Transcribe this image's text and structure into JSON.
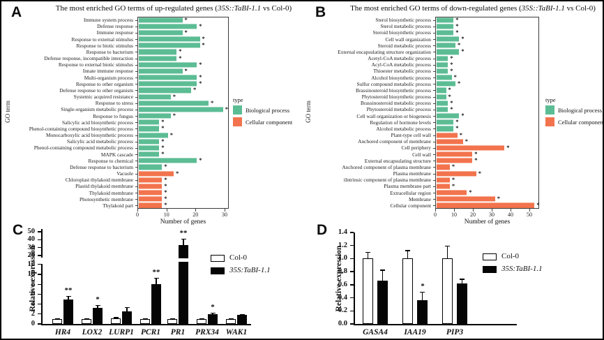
{
  "panels": {
    "a": {
      "letter": "A",
      "title_prefix": "The most enriched GO terms of up-regulated genes (",
      "title_italic": "35S::TaBI-1.1",
      "title_suffix": " vs Col-0)"
    },
    "b": {
      "letter": "B",
      "title_prefix": "The most enriched GO terms of down-regulated genes (",
      "title_italic": "35S::TaBI-1.1",
      "title_suffix": " vs Col-0)"
    },
    "c": {
      "letter": "C"
    },
    "d": {
      "letter": "D"
    }
  },
  "chart_data": [
    {
      "id": "A",
      "type": "bar",
      "orientation": "horizontal",
      "title": "The most enriched GO terms of up-regulated genes (35S::TaBI-1.1 vs Col-0)",
      "xlabel": "Number of genes",
      "ylabel": "GO term",
      "xlim": [
        0,
        30
      ],
      "xticks": [
        0,
        10,
        20,
        30
      ],
      "legend_title": "type",
      "legend": [
        {
          "label": "Biological process",
          "color": "#5CBC94"
        },
        {
          "label": "Cellular component",
          "color": "#F2734D"
        }
      ],
      "colors": {
        "bp": "#5CBC94",
        "cc": "#F2734D"
      },
      "rows": [
        {
          "label": "Immune system process",
          "value": 15,
          "type": "bp",
          "sig": "*"
        },
        {
          "label": "Defense response",
          "value": 20,
          "type": "bp",
          "sig": "*"
        },
        {
          "label": "Immune response",
          "value": 15,
          "type": "bp",
          "sig": "*"
        },
        {
          "label": "Response to external stimulus",
          "value": 21,
          "type": "bp",
          "sig": "*"
        },
        {
          "label": "Response to biotic stimulus",
          "value": 21,
          "type": "bp",
          "sig": "*"
        },
        {
          "label": "Response to bacterium",
          "value": 13,
          "type": "bp",
          "sig": "*"
        },
        {
          "label": "Defense response, incompatible interaction",
          "value": 13,
          "type": "bp",
          "sig": "*"
        },
        {
          "label": "Response to external biotic stimulus",
          "value": 20,
          "type": "bp",
          "sig": "*"
        },
        {
          "label": "Innate immune response",
          "value": 15,
          "type": "bp",
          "sig": "*"
        },
        {
          "label": "Multi-organism process",
          "value": 20,
          "type": "bp",
          "sig": "*"
        },
        {
          "label": "Response to other organism",
          "value": 20,
          "type": "bp",
          "sig": "*"
        },
        {
          "label": "Defense response to other organism",
          "value": 18,
          "type": "bp",
          "sig": "*"
        },
        {
          "label": "Systemic acquired resistance",
          "value": 11,
          "type": "bp",
          "sig": "*"
        },
        {
          "label": "Response to stress",
          "value": 24,
          "type": "bp",
          "sig": "*"
        },
        {
          "label": "Single-organism metabolic process",
          "value": 29,
          "type": "bp",
          "sig": "*"
        },
        {
          "label": "Response to fungus",
          "value": 11,
          "type": "bp",
          "sig": "*"
        },
        {
          "label": "Salicylic acid biosynthetic process",
          "value": 7,
          "type": "bp",
          "sig": "*"
        },
        {
          "label": "Phenol-containing compound biosynthetic process",
          "value": 7,
          "type": "bp",
          "sig": "*"
        },
        {
          "label": "Monocarboxylic acid biosynthetic process",
          "value": 10,
          "type": "bp",
          "sig": "*"
        },
        {
          "label": "Salicylic acid metabolic process",
          "value": 7,
          "type": "bp",
          "sig": "*"
        },
        {
          "label": "Phenol-containing compound metabolic process",
          "value": 7,
          "type": "bp",
          "sig": "*"
        },
        {
          "label": "MAPK cascade",
          "value": 7,
          "type": "bp",
          "sig": "*"
        },
        {
          "label": "Response to chemical",
          "value": 20,
          "type": "bp",
          "sig": "*"
        },
        {
          "label": "Defense response to bacterium",
          "value": 8,
          "type": "bp",
          "sig": "*"
        },
        {
          "label": "Vacuole",
          "value": 12,
          "type": "cc",
          "sig": "*"
        },
        {
          "label": "Chloroplast thylakoid membrane",
          "value": 8,
          "type": "cc",
          "sig": "*"
        },
        {
          "label": "Plastid thylakoid membrane",
          "value": 8,
          "type": "cc",
          "sig": "*"
        },
        {
          "label": "Thylakoid membrane",
          "value": 8,
          "type": "cc",
          "sig": "*"
        },
        {
          "label": "Photosynthetic membrane",
          "value": 8,
          "type": "cc",
          "sig": "*"
        },
        {
          "label": "Thylakoid part",
          "value": 8,
          "type": "cc",
          "sig": "*"
        }
      ]
    },
    {
      "id": "B",
      "type": "bar",
      "orientation": "horizontal",
      "title": "The most enriched GO terms of down-regulated genes (35S::TaBI-1.1 vs Col-0)",
      "xlabel": "Number of genes",
      "ylabel": "GO term",
      "xlim": [
        0,
        55
      ],
      "xticks": [
        0,
        10,
        20,
        30,
        40,
        50
      ],
      "legend_title": "type",
      "legend": [
        {
          "label": "Biological process",
          "color": "#5CBC94"
        },
        {
          "label": "Cellular component",
          "color": "#F2734D"
        }
      ],
      "colors": {
        "bp": "#5CBC94",
        "cc": "#F2734D"
      },
      "rows": [
        {
          "label": "Sterol biosynthetic process",
          "value": 9,
          "type": "bp",
          "sig": "*"
        },
        {
          "label": "Sterol metabolic process",
          "value": 9,
          "type": "bp",
          "sig": "*"
        },
        {
          "label": "Steroid biosynthetic process",
          "value": 9,
          "type": "bp",
          "sig": "*"
        },
        {
          "label": "Cell wall organization",
          "value": 12,
          "type": "bp",
          "sig": "*"
        },
        {
          "label": "Steroid metabolic process",
          "value": 10,
          "type": "bp",
          "sig": "*"
        },
        {
          "label": "External encapsulating structure organization",
          "value": 12,
          "type": "bp",
          "sig": "*"
        },
        {
          "label": "Acetyl-CoA metabolic process",
          "value": 6,
          "type": "bp",
          "sig": "*"
        },
        {
          "label": "Acyl-CoA metabolic process",
          "value": 6,
          "type": "bp",
          "sig": "*"
        },
        {
          "label": "Thioester metabolic process",
          "value": 6,
          "type": "bp",
          "sig": "*"
        },
        {
          "label": "Alcohol biosynthetic process",
          "value": 8,
          "type": "bp",
          "sig": "*"
        },
        {
          "label": "Sulfur compound metabolic process",
          "value": 10,
          "type": "bp",
          "sig": "*"
        },
        {
          "label": "Brassinosteroid biosynthetic process",
          "value": 5,
          "type": "bp",
          "sig": "*"
        },
        {
          "label": "Phytosteroid biosynthetic process",
          "value": 5,
          "type": "bp",
          "sig": "*"
        },
        {
          "label": "Brassinosteroid metabolic process",
          "value": 6,
          "type": "bp",
          "sig": "*"
        },
        {
          "label": "Phytosteroid metabolic process",
          "value": 6,
          "type": "bp",
          "sig": "*"
        },
        {
          "label": "Cell wall organization or biogenesis",
          "value": 12,
          "type": "bp",
          "sig": "*"
        },
        {
          "label": "Regulation of hormone levels",
          "value": 9,
          "type": "bp",
          "sig": "*"
        },
        {
          "label": "Alcohol metabolic process",
          "value": 9,
          "type": "bp",
          "sig": "*"
        },
        {
          "label": "Plant-type cell wall",
          "value": 11,
          "type": "cc",
          "sig": "*"
        },
        {
          "label": "Anchored component of membrane",
          "value": 14,
          "type": "cc",
          "sig": "*"
        },
        {
          "label": "Cell periphery",
          "value": 36,
          "type": "cc",
          "sig": "*"
        },
        {
          "label": "Cell wall",
          "value": 19,
          "type": "cc",
          "sig": "*"
        },
        {
          "label": "External encapsulating structure",
          "value": 19,
          "type": "cc",
          "sig": "*"
        },
        {
          "label": "Anchored component of plasma membrane",
          "value": 7,
          "type": "cc",
          "sig": "*"
        },
        {
          "label": "Plasma membrane",
          "value": 21,
          "type": "cc",
          "sig": "*"
        },
        {
          "label": "iIntrinsic component of plasma membrane",
          "value": 7,
          "type": "cc",
          "sig": "*"
        },
        {
          "label": "Plasma membrane part",
          "value": 7,
          "type": "cc",
          "sig": "*"
        },
        {
          "label": "Extracellular region",
          "value": 16,
          "type": "cc",
          "sig": "*"
        },
        {
          "label": "Membrane",
          "value": 31,
          "type": "cc",
          "sig": "*"
        },
        {
          "label": "Cellular component",
          "value": 52,
          "type": "cc",
          "sig": "*"
        }
      ]
    },
    {
      "id": "C",
      "type": "bar",
      "orientation": "vertical",
      "ylabel": "Relative expression",
      "broken_axis": {
        "lower_range": [
          0,
          12
        ],
        "lower_ticks": [
          0,
          2,
          4,
          6,
          8,
          10,
          12
        ],
        "upper_range": [
          20,
          50
        ],
        "upper_ticks": [
          20,
          30,
          40,
          50
        ]
      },
      "series": [
        {
          "name": "Col-0",
          "fill": "#ffffff"
        },
        {
          "name": "35S:TaBI-1.1",
          "fill": "#050505"
        }
      ],
      "groups": [
        {
          "gene": "HR4",
          "col0": 1.0,
          "col0_err": 0.15,
          "tabi": 5.0,
          "tabi_err": 0.6,
          "sig": "**"
        },
        {
          "gene": "LOX2",
          "col0": 1.05,
          "col0_err": 0.15,
          "tabi": 3.3,
          "tabi_err": 0.5,
          "sig": "*"
        },
        {
          "gene": "LURP1",
          "col0": 1.1,
          "col0_err": 0.25,
          "tabi": 2.6,
          "tabi_err": 0.8,
          "sig": ""
        },
        {
          "gene": "PCR1",
          "col0": 1.0,
          "col0_err": 0.1,
          "tabi": 8.0,
          "tabi_err": 1.3,
          "sig": "**"
        },
        {
          "gene": "PR1",
          "col0": 1.05,
          "col0_err": 0.15,
          "tabi": 33,
          "tabi_err": 8,
          "sig": "**"
        },
        {
          "gene": "PRX34",
          "col0": 1.0,
          "col0_err": 0.1,
          "tabi": 2.0,
          "tabi_err": 0.25,
          "sig": "*"
        },
        {
          "gene": "WAK1",
          "col0": 1.05,
          "col0_err": 0.15,
          "tabi": 1.8,
          "tabi_err": 0.2,
          "sig": ""
        }
      ]
    },
    {
      "id": "D",
      "type": "bar",
      "orientation": "vertical",
      "ylabel": "Relative expression",
      "yticks": [
        "0.0",
        "0.2",
        "0.4",
        "0.6",
        "0.8",
        "1.0",
        "1.2",
        "1.4"
      ],
      "ylim": [
        0,
        1.4
      ],
      "series": [
        {
          "name": "Col-0",
          "fill": "#ffffff"
        },
        {
          "name": "35S:TaBI-1.1",
          "fill": "#050505"
        }
      ],
      "groups": [
        {
          "gene": "GASA4",
          "col0": 1.01,
          "col0_err": 0.09,
          "tabi": 0.66,
          "tabi_err": 0.17,
          "sig": ""
        },
        {
          "gene": "IAA19",
          "col0": 1.01,
          "col0_err": 0.12,
          "tabi": 0.36,
          "tabi_err": 0.13,
          "sig": "*"
        },
        {
          "gene": "PIP3",
          "col0": 1.01,
          "col0_err": 0.19,
          "tabi": 0.62,
          "tabi_err": 0.07,
          "sig": ""
        }
      ]
    }
  ]
}
